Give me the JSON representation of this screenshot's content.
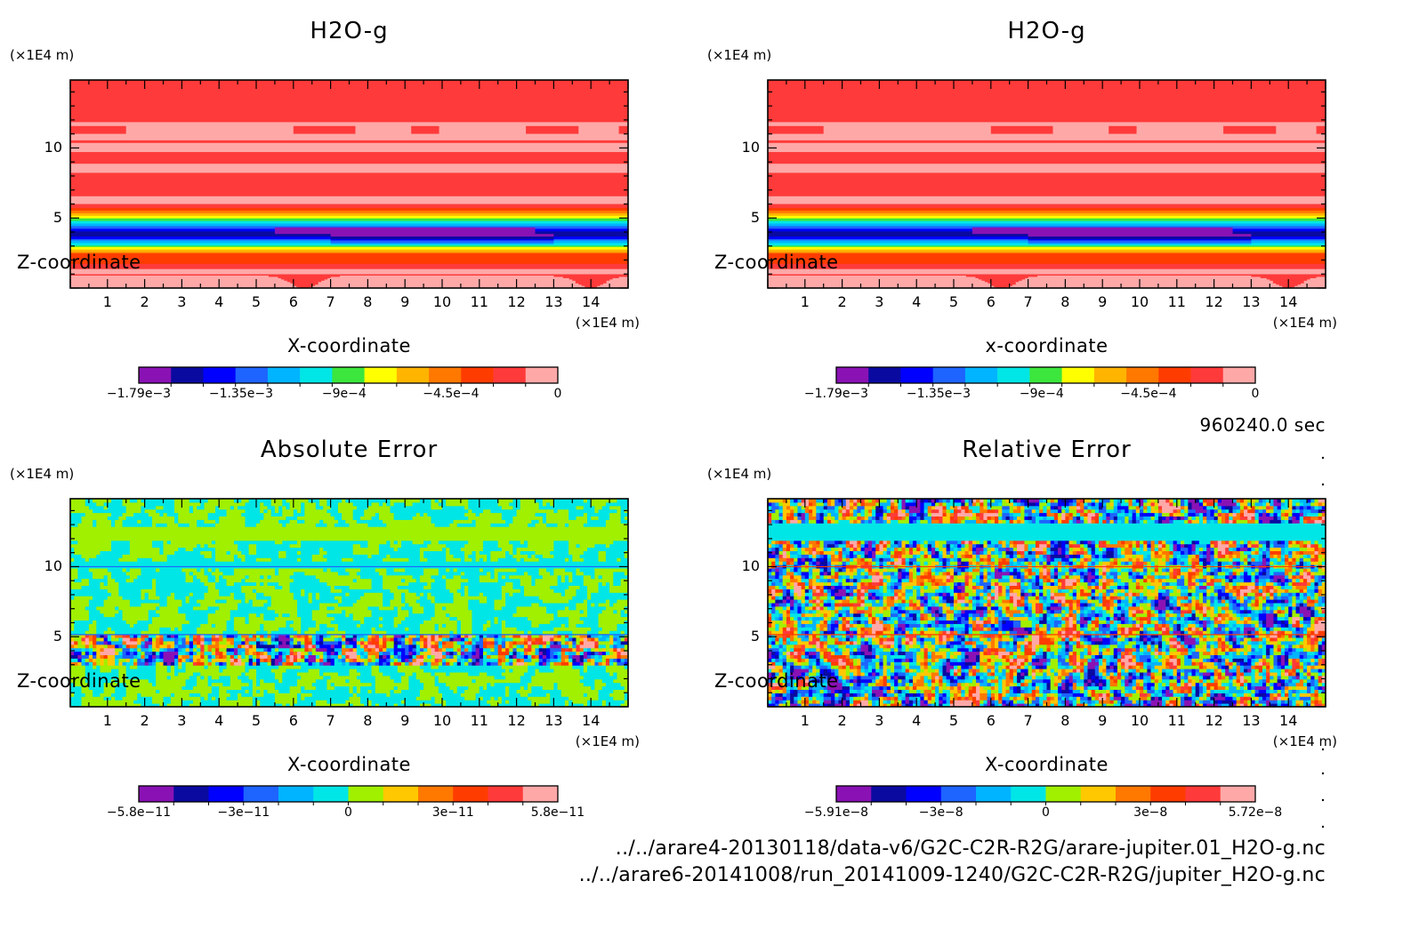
{
  "time_label": "960240.0 sec",
  "file_paths": [
    "../../arare4-20130118/data-v6/G2C-C2R-R2G/arare-jupiter.01_H2O-g.nc",
    "../../arare6-20141008/run_20141009-1240/G2C-C2R-R2G/jupiter_H2O-g.nc"
  ],
  "chart_data": [
    {
      "type": "heatmap",
      "title": "H2O-g",
      "xlabel": "X-coordinate",
      "ylabel": "Z-coordinate",
      "x_unit": "(×1E4 m)",
      "y_unit": "(×1E4 m)",
      "xlim": [
        0,
        15
      ],
      "ylim": [
        0,
        15
      ],
      "x_ticks": [
        1,
        2,
        3,
        4,
        5,
        6,
        7,
        8,
        9,
        10,
        11,
        12,
        13,
        14
      ],
      "y_ticks": [
        5,
        10
      ],
      "colorbar": {
        "min": -0.00179,
        "max": 0,
        "tick_labels": [
          "−1.79e−3",
          "−1.35e−3",
          "−9e−4",
          "−4.5e−4",
          "0"
        ]
      },
      "colors": [
        "#8a12b4",
        "#0a0aa0",
        "#0000ff",
        "#1e64ff",
        "#00b4ff",
        "#00e6e6",
        "#3ce63c",
        "#ffff00",
        "#ffb400",
        "#ff7800",
        "#ff3c00",
        "#ff3a3a",
        "#ffa8a8"
      ]
    },
    {
      "type": "heatmap",
      "title": "H2O-g",
      "xlabel": "x-coordinate",
      "ylabel": "Z-coordinate",
      "x_unit": "(×1E4 m)",
      "y_unit": "(×1E4 m)",
      "xlim": [
        0,
        15
      ],
      "ylim": [
        0,
        15
      ],
      "x_ticks": [
        1,
        2,
        3,
        4,
        5,
        6,
        7,
        8,
        9,
        10,
        11,
        12,
        13,
        14
      ],
      "y_ticks": [
        5,
        10
      ],
      "colorbar": {
        "min": -0.00179,
        "max": 0,
        "tick_labels": [
          "−1.79e−3",
          "−1.35e−3",
          "−9e−4",
          "−4.5e−4",
          "0"
        ]
      },
      "colors": [
        "#8a12b4",
        "#0a0aa0",
        "#0000ff",
        "#1e64ff",
        "#00b4ff",
        "#00e6e6",
        "#3ce63c",
        "#ffff00",
        "#ffb400",
        "#ff7800",
        "#ff3c00",
        "#ff3a3a",
        "#ffa8a8"
      ]
    },
    {
      "type": "heatmap",
      "title": "Absolute Error",
      "xlabel": "X-coordinate",
      "ylabel": "Z-coordinate",
      "x_unit": "(×1E4 m)",
      "y_unit": "(×1E4 m)",
      "xlim": [
        0,
        15
      ],
      "ylim": [
        0,
        15
      ],
      "x_ticks": [
        1,
        2,
        3,
        4,
        5,
        6,
        7,
        8,
        9,
        10,
        11,
        12,
        13,
        14
      ],
      "y_ticks": [
        5,
        10
      ],
      "colorbar": {
        "min": -5.8e-11,
        "max": 5.8e-11,
        "tick_labels": [
          "−5.8e−11",
          "−3e−11",
          "0",
          "3e−11",
          "5.8e−11"
        ]
      },
      "colors": [
        "#8a12b4",
        "#0a0aa0",
        "#0000ff",
        "#1e64ff",
        "#00b4ff",
        "#00e6e6",
        "#a0f000",
        "#ffc800",
        "#ff7800",
        "#ff3c00",
        "#ff3a3a",
        "#ffa8a8"
      ]
    },
    {
      "type": "heatmap",
      "title": "Relative Error",
      "xlabel": "X-coordinate",
      "ylabel": "Z-coordinate",
      "x_unit": "(×1E4 m)",
      "y_unit": "(×1E4 m)",
      "xlim": [
        0,
        15
      ],
      "ylim": [
        0,
        15
      ],
      "x_ticks": [
        1,
        2,
        3,
        4,
        5,
        6,
        7,
        8,
        9,
        10,
        11,
        12,
        13,
        14
      ],
      "y_ticks": [
        5,
        10
      ],
      "colorbar": {
        "min": -5.91e-08,
        "max": 5.72e-08,
        "tick_labels": [
          "−5.91e−8",
          "−3e−8",
          "0",
          "3e−8",
          "5.72e−8"
        ]
      },
      "colors": [
        "#8a12b4",
        "#0a0aa0",
        "#0000ff",
        "#1e64ff",
        "#00b4ff",
        "#00e6e6",
        "#a0f000",
        "#ffc800",
        "#ff7800",
        "#ff3c00",
        "#ff3a3a",
        "#ffa8a8"
      ]
    }
  ]
}
